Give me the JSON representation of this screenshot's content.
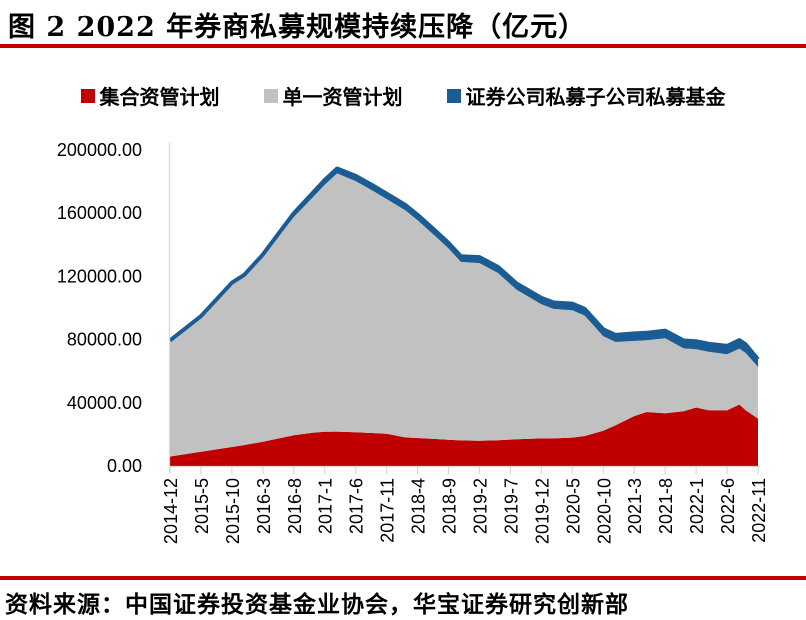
{
  "title": "图 2 2022 年券商私募规模持续压降（亿元）",
  "footer": {
    "source_text": "资料来源：中国证券投资基金业协会，华宝证券研究创新部"
  },
  "colors": {
    "rule_red": "#c40000",
    "collective_red": "#c00000",
    "single_gray": "#c1c1c1",
    "subsidiary_blue": "#1b5c94",
    "axis_gray": "#d9d9d9",
    "text_black": "#000000"
  },
  "legend": [
    {
      "label": "集合资管计划",
      "color": "#c00000"
    },
    {
      "label": "单一资管计划",
      "color": "#c1c1c1"
    },
    {
      "label": "证券公司私募子公司私募基金",
      "color": "#1b5c94"
    }
  ],
  "chart_data": {
    "type": "area",
    "stacked": true,
    "unit": "亿元",
    "title": "2022 年券商私募规模持续压降（亿元）",
    "xlabel": "",
    "ylabel": "",
    "ylim": [
      0,
      200000
    ],
    "grid": false,
    "legend_position": "top",
    "y_ticks": [
      0,
      40000,
      80000,
      120000,
      160000,
      200000
    ],
    "y_tick_labels": [
      "0.00",
      "40000.00",
      "80000.00",
      "120000.00",
      "160000.00",
      "200000.00"
    ],
    "x_tick_labels": [
      "2014-12",
      "2015-5",
      "2015-10",
      "2016-3",
      "2016-8",
      "2017-1",
      "2017-6",
      "2017-11",
      "2018-4",
      "2018-9",
      "2019-2",
      "2019-7",
      "2019-12",
      "2020-5",
      "2020-10",
      "2021-3",
      "2021-8",
      "2022-1",
      "2022-6",
      "2022-11"
    ],
    "x_tick_months": [
      0,
      5,
      10,
      15,
      20,
      25,
      30,
      35,
      40,
      45,
      50,
      55,
      60,
      65,
      70,
      75,
      80,
      85,
      90,
      95
    ],
    "months": [
      0,
      5,
      10,
      12,
      15,
      20,
      23,
      25,
      27,
      30,
      33,
      35,
      38,
      40,
      43,
      45,
      47,
      50,
      53,
      56,
      60,
      62,
      65,
      67,
      70,
      72,
      75,
      77,
      80,
      83,
      85,
      87,
      90,
      92,
      93,
      95
    ],
    "series": [
      {
        "name": "集合资管计划",
        "color": "#c00000",
        "values": [
          6000,
          9000,
          12000,
          13300,
          15300,
          19500,
          21000,
          21700,
          21800,
          21300,
          20800,
          20400,
          18100,
          17700,
          17100,
          16600,
          16200,
          16000,
          16300,
          16900,
          17500,
          17500,
          18000,
          19000,
          22250,
          25800,
          31600,
          34200,
          33400,
          34650,
          37000,
          35300,
          35300,
          38900,
          35300,
          30000
        ]
      },
      {
        "name": "单一资管计划",
        "color": "#c1c1c1",
        "values": [
          73500,
          85800,
          103800,
          107200,
          117300,
          138100,
          148800,
          156300,
          163400,
          159000,
          152850,
          148600,
          143750,
          137800,
          127900,
          121100,
          113000,
          112400,
          105850,
          94700,
          84900,
          81900,
          80600,
          76200,
          59850,
          52700,
          47600,
          45350,
          47400,
          39750,
          36900,
          36950,
          35400,
          35400,
          36300,
          32700
        ]
      },
      {
        "name": "证券公司私募子公司私募基金",
        "color": "#1b5c94",
        "values": [
          0,
          0,
          200,
          500,
          1200,
          2400,
          2800,
          3000,
          3100,
          3300,
          3350,
          3400,
          3450,
          3500,
          3500,
          3500,
          3600,
          3800,
          3850,
          3900,
          4000,
          4100,
          4200,
          4300,
          4400,
          4500,
          4700,
          4750,
          4900,
          5000,
          5100,
          5150,
          5300,
          5400,
          5400,
          4800
        ]
      }
    ]
  }
}
